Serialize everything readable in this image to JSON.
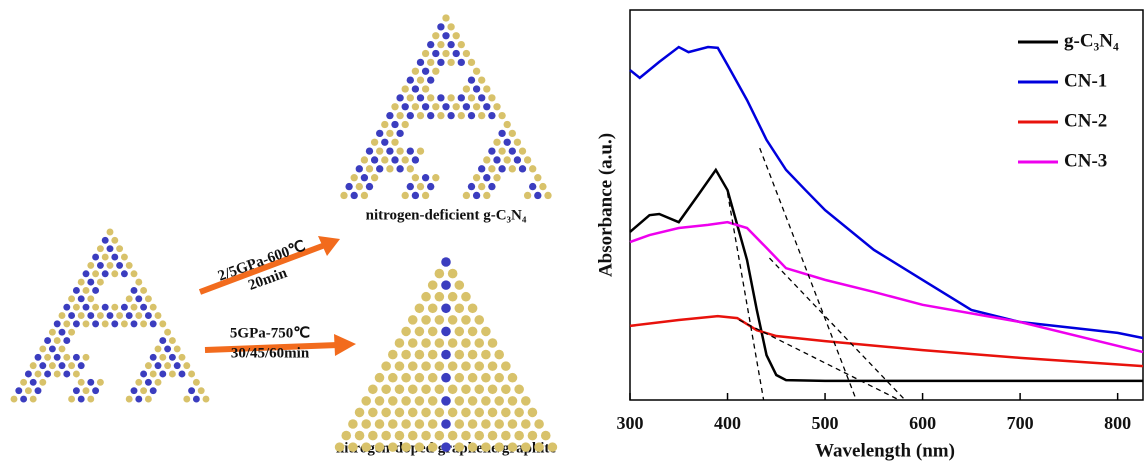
{
  "diagram": {
    "arrow_labels": [
      [
        "2/5GPa-600℃",
        "20min"
      ],
      [
        "5GPa-750℃",
        "30/45/60min"
      ]
    ],
    "captions": [
      "nitrogen-deficient g-C₃N₄",
      "nitrogen-doped graphene/graphite"
    ]
  },
  "chart_data": {
    "type": "line",
    "x_label": "Wavelength (nm)",
    "y_label": "Absorbance (a.u.)",
    "xlim": [
      300,
      826
    ],
    "xticks": [
      300,
      400,
      500,
      600,
      700,
      800
    ],
    "ylim": [
      0,
      1
    ],
    "legend": "upper right",
    "series": [
      {
        "name": "g-C₃N₄",
        "color": "#000000",
        "x": [
          300,
          320,
          330,
          350,
          370,
          388,
          400,
          420,
          430,
          440,
          450,
          460,
          500,
          600,
          826
        ],
        "values": [
          0.431,
          0.474,
          0.477,
          0.456,
          0.526,
          0.59,
          0.538,
          0.359,
          0.231,
          0.115,
          0.064,
          0.051,
          0.049,
          0.049,
          0.049
        ]
      },
      {
        "name": "CN-1",
        "color": "#0000dd",
        "x": [
          300,
          310,
          330,
          350,
          360,
          380,
          390,
          400,
          420,
          440,
          460,
          480,
          500,
          550,
          600,
          650,
          700,
          800,
          826
        ],
        "values": [
          0.846,
          0.826,
          0.867,
          0.905,
          0.892,
          0.905,
          0.903,
          0.859,
          0.769,
          0.667,
          0.59,
          0.538,
          0.487,
          0.385,
          0.308,
          0.231,
          0.2,
          0.172,
          0.159
        ]
      },
      {
        "name": "CN-2",
        "color": "#e8120c",
        "x": [
          300,
          350,
          390,
          410,
          430,
          450,
          500,
          600,
          700,
          826
        ],
        "values": [
          0.19,
          0.205,
          0.215,
          0.21,
          0.179,
          0.164,
          0.151,
          0.128,
          0.108,
          0.087
        ]
      },
      {
        "name": "CN-3",
        "color": "#ee00ee",
        "x": [
          300,
          320,
          350,
          380,
          400,
          420,
          440,
          460,
          500,
          550,
          600,
          700,
          826
        ],
        "values": [
          0.405,
          0.423,
          0.441,
          0.449,
          0.456,
          0.441,
          0.39,
          0.338,
          0.308,
          0.277,
          0.244,
          0.2,
          0.123
        ]
      }
    ],
    "tangents": [
      {
        "x": [
          400,
          437
        ],
        "values": [
          0.531,
          0
        ]
      },
      {
        "x": [
          433,
          532
        ],
        "values": [
          0.646,
          0
        ]
      },
      {
        "x": [
          443,
          582
        ],
        "values": [
          0.364,
          0
        ]
      },
      {
        "x": [
          412,
          576
        ],
        "values": [
          0.205,
          0
        ]
      }
    ]
  }
}
